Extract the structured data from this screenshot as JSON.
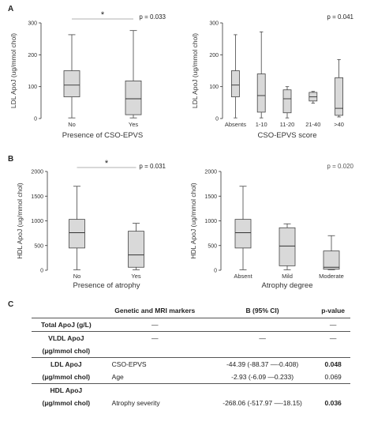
{
  "panel_labels": {
    "a": "A",
    "b": "B",
    "c": "C"
  },
  "chart_data": [
    {
      "type": "box",
      "ylabel": "LDL ApoJ (ug/mmol chol)",
      "xlabel": "Presence of CSO-EPVS",
      "ylim": [
        0,
        300
      ],
      "yticks": [
        0,
        100,
        200,
        300
      ],
      "p_value": "p = 0.033",
      "significance_marker": "*",
      "categories": [
        "No",
        "Yes"
      ],
      "boxes": [
        {
          "min": 2,
          "q1": 68,
          "median": 105,
          "q3": 150,
          "max": 263
        },
        {
          "min": 2,
          "q1": 12,
          "median": 62,
          "q3": 118,
          "max": 276
        }
      ]
    },
    {
      "type": "box",
      "ylabel": "LDL ApoJ (ug/mmol chol)",
      "xlabel": "CSO-EPVS score",
      "ylim": [
        0,
        300
      ],
      "yticks": [
        0,
        100,
        200,
        300
      ],
      "p_value": "p = 0.041",
      "categories": [
        "Absents",
        "1-10",
        "11-20",
        "21-40",
        ">40"
      ],
      "boxes": [
        {
          "min": 2,
          "q1": 68,
          "median": 105,
          "q3": 150,
          "max": 263
        },
        {
          "min": 2,
          "q1": 20,
          "median": 72,
          "q3": 140,
          "max": 272
        },
        {
          "min": 2,
          "q1": 18,
          "median": 62,
          "q3": 90,
          "max": 100
        },
        {
          "min": 48,
          "q1": 55,
          "median": 68,
          "q3": 82,
          "max": 85
        },
        {
          "min": 5,
          "q1": 10,
          "median": 32,
          "q3": 128,
          "max": 185
        }
      ]
    },
    {
      "type": "box",
      "ylabel": "HDL ApoJ (ug/mmol chol)",
      "xlabel": "Presence of atrophy",
      "ylim": [
        0,
        2000
      ],
      "yticks": [
        0,
        500,
        1000,
        1500,
        2000
      ],
      "p_value": "p = 0.031",
      "significance_marker": "*",
      "categories": [
        "No",
        "Yes"
      ],
      "boxes": [
        {
          "min": 10,
          "q1": 450,
          "median": 760,
          "q3": 1030,
          "max": 1700
        },
        {
          "min": 10,
          "q1": 60,
          "median": 310,
          "q3": 790,
          "max": 950
        }
      ]
    },
    {
      "type": "box",
      "ylabel": "HDL ApoJ (ug/mmol chol)",
      "xlabel": "Atrophy degree",
      "ylim": [
        0,
        2000
      ],
      "yticks": [
        0,
        500,
        1000,
        1500,
        2000
      ],
      "p_value": "p = 0.020",
      "categories": [
        "Absent",
        "Mild",
        "Moderate"
      ],
      "boxes": [
        {
          "min": 10,
          "q1": 450,
          "median": 760,
          "q3": 1030,
          "max": 1700
        },
        {
          "min": 10,
          "q1": 90,
          "median": 490,
          "q3": 860,
          "max": 940
        },
        {
          "min": 10,
          "q1": 20,
          "median": 60,
          "q3": 390,
          "max": 700
        }
      ]
    }
  ],
  "table": {
    "headers": [
      "",
      "Genetic and MRI markers",
      "B (95% CI)",
      "p-value"
    ],
    "rows": [
      {
        "var": "Total ApoJ (g/L)",
        "marker": "—",
        "b": "",
        "p": "—",
        "end": true
      },
      {
        "var": "VLDL ApoJ",
        "marker": "—",
        "b": "—",
        "p": "—",
        "end": false
      },
      {
        "var": "(µg/mmol chol)",
        "marker": "",
        "b": "",
        "p": "",
        "end": true
      },
      {
        "var": "LDL ApoJ",
        "marker": "CSO-EPVS",
        "b": "-44.39 (-88.37 —-0.408)",
        "p": "0.048",
        "bold": true,
        "end": false
      },
      {
        "var": "(µg/mmol chol)",
        "marker": "Age",
        "b": "-2.93 (-6.09 —0.233)",
        "p": "0.069",
        "end": true
      },
      {
        "var": "HDL ApoJ",
        "marker": "",
        "b": "",
        "p": "",
        "end": false
      },
      {
        "var": "(µg/mmol chol)",
        "marker": "Atrophy severity",
        "b": "-268.06 (-517.97 —-18.15)",
        "p": "0.036",
        "bold": true,
        "end": false
      }
    ]
  }
}
